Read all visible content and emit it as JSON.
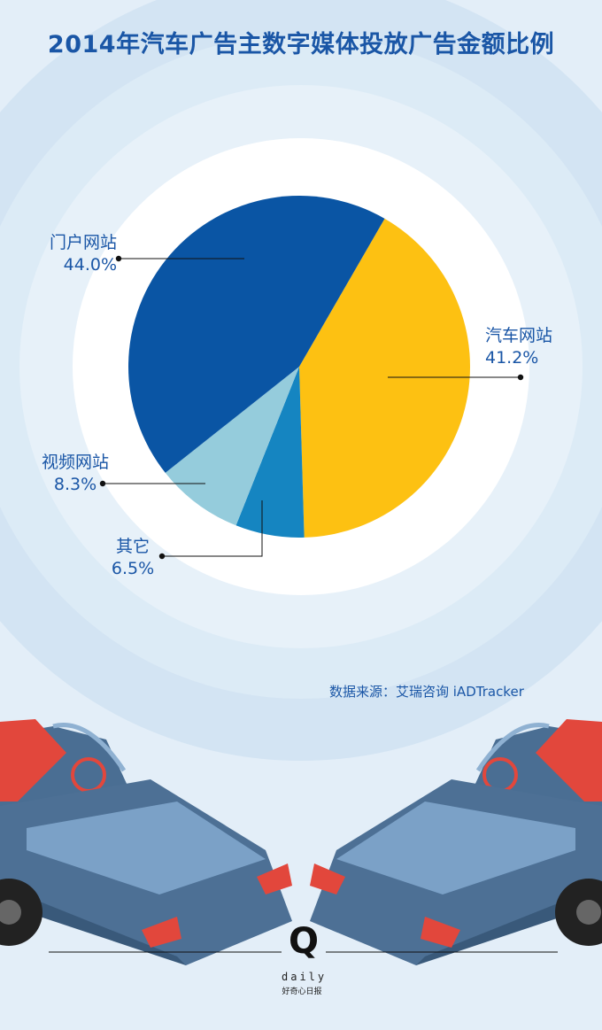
{
  "title": "2014年汽车广告主数字媒体投放广告金额比例",
  "source": "数据来源：艾瑞咨询 iADTracker",
  "logo": {
    "letter": "Q",
    "word": "daily",
    "tagline": "好奇心日报"
  },
  "colors": {
    "background": "#e3eef8",
    "text": "#1a56a6",
    "portal": "#0a55a4",
    "auto": "#fdc112",
    "video": "#95ccdc",
    "other": "#1585c1"
  },
  "chart_data": {
    "type": "pie",
    "title": "2014年汽车广告主数字媒体投放广告金额比例",
    "slices": [
      {
        "name": "汽车网站",
        "value": 41.2,
        "label": "41.2%",
        "color": "#fdc112"
      },
      {
        "name": "其它",
        "value": 6.5,
        "label": "6.5%",
        "color": "#1585c1"
      },
      {
        "name": "视频网站",
        "value": 8.3,
        "label": "8.3%",
        "color": "#95ccdc"
      },
      {
        "name": "门户网站",
        "value": 44.0,
        "label": "44.0%",
        "color": "#0a55a4"
      }
    ],
    "legend": "none"
  }
}
